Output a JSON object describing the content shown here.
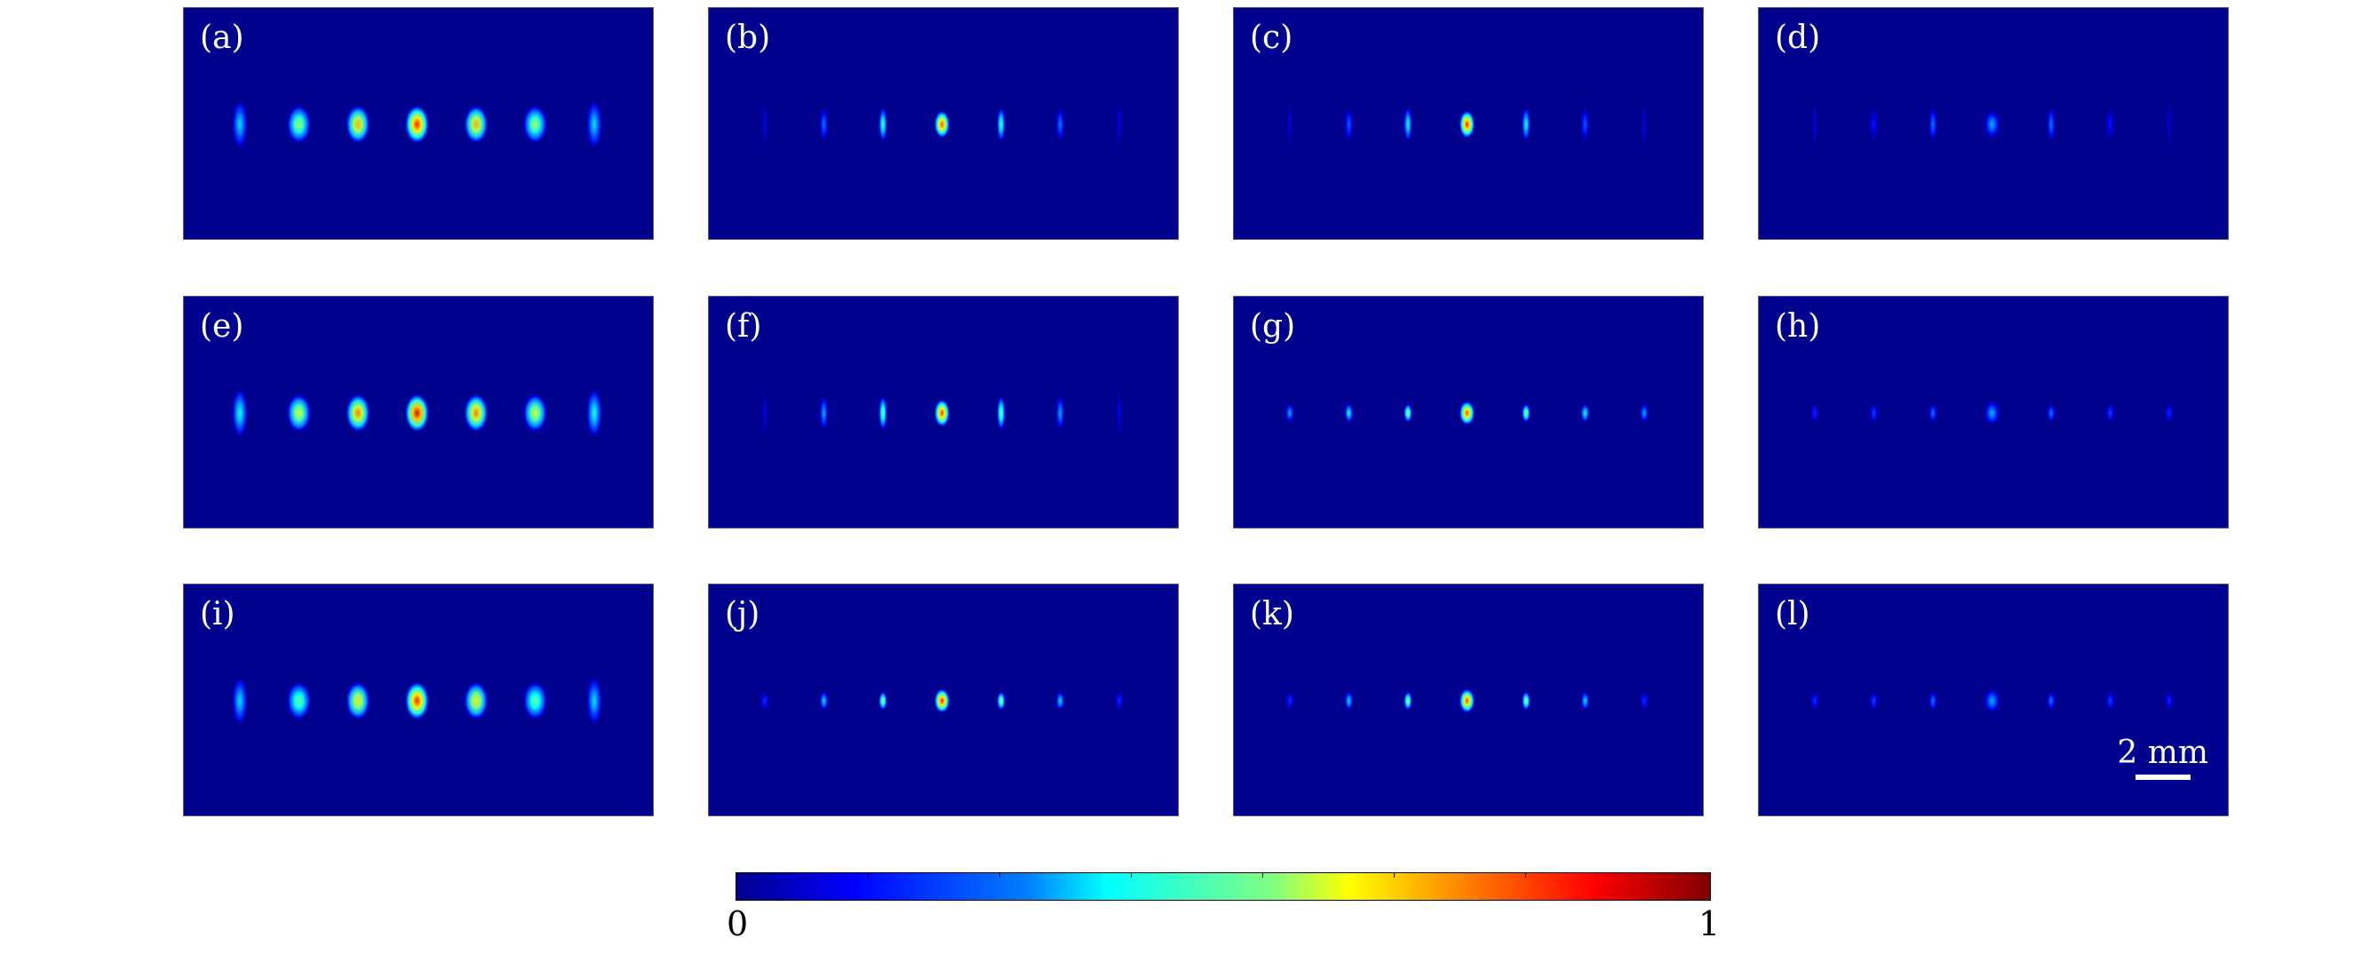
{
  "panels": [
    {
      "label": "(a)",
      "spots": [
        0.35,
        0.55,
        0.7,
        0.85,
        0.7,
        0.55,
        0.35
      ],
      "shape": "wide"
    },
    {
      "label": "(b)",
      "spots": [
        0.12,
        0.25,
        0.45,
        0.8,
        0.45,
        0.25,
        0.12
      ],
      "shape": "line"
    },
    {
      "label": "(c)",
      "spots": [
        0.1,
        0.22,
        0.4,
        0.85,
        0.4,
        0.22,
        0.1
      ],
      "shape": "line"
    },
    {
      "label": "(d)",
      "spots": [
        0.1,
        0.15,
        0.25,
        0.3,
        0.25,
        0.15,
        0.1
      ],
      "shape": "line"
    },
    {
      "label": "(e)",
      "spots": [
        0.4,
        0.6,
        0.75,
        0.9,
        0.75,
        0.6,
        0.4
      ],
      "shape": "wide"
    },
    {
      "label": "(f)",
      "spots": [
        0.12,
        0.3,
        0.5,
        0.82,
        0.5,
        0.3,
        0.12
      ],
      "shape": "line"
    },
    {
      "label": "(g)",
      "spots": [
        0.3,
        0.4,
        0.55,
        0.8,
        0.55,
        0.4,
        0.3
      ],
      "shape": "small"
    },
    {
      "label": "(h)",
      "spots": [
        0.18,
        0.2,
        0.25,
        0.3,
        0.25,
        0.2,
        0.18
      ],
      "shape": "small"
    },
    {
      "label": "(i)",
      "spots": [
        0.35,
        0.5,
        0.65,
        0.85,
        0.65,
        0.5,
        0.35
      ],
      "shape": "wide"
    },
    {
      "label": "(j)",
      "spots": [
        0.18,
        0.35,
        0.55,
        0.85,
        0.55,
        0.35,
        0.18
      ],
      "shape": "small"
    },
    {
      "label": "(k)",
      "spots": [
        0.18,
        0.35,
        0.55,
        0.8,
        0.55,
        0.35,
        0.18
      ],
      "shape": "small"
    },
    {
      "label": "(l)",
      "spots": [
        0.18,
        0.2,
        0.25,
        0.3,
        0.25,
        0.2,
        0.18
      ],
      "shape": "small"
    }
  ],
  "scalebar": {
    "label": "2 mm"
  },
  "colorbar": {
    "min": "0",
    "max": "1",
    "colormap": "jet"
  }
}
